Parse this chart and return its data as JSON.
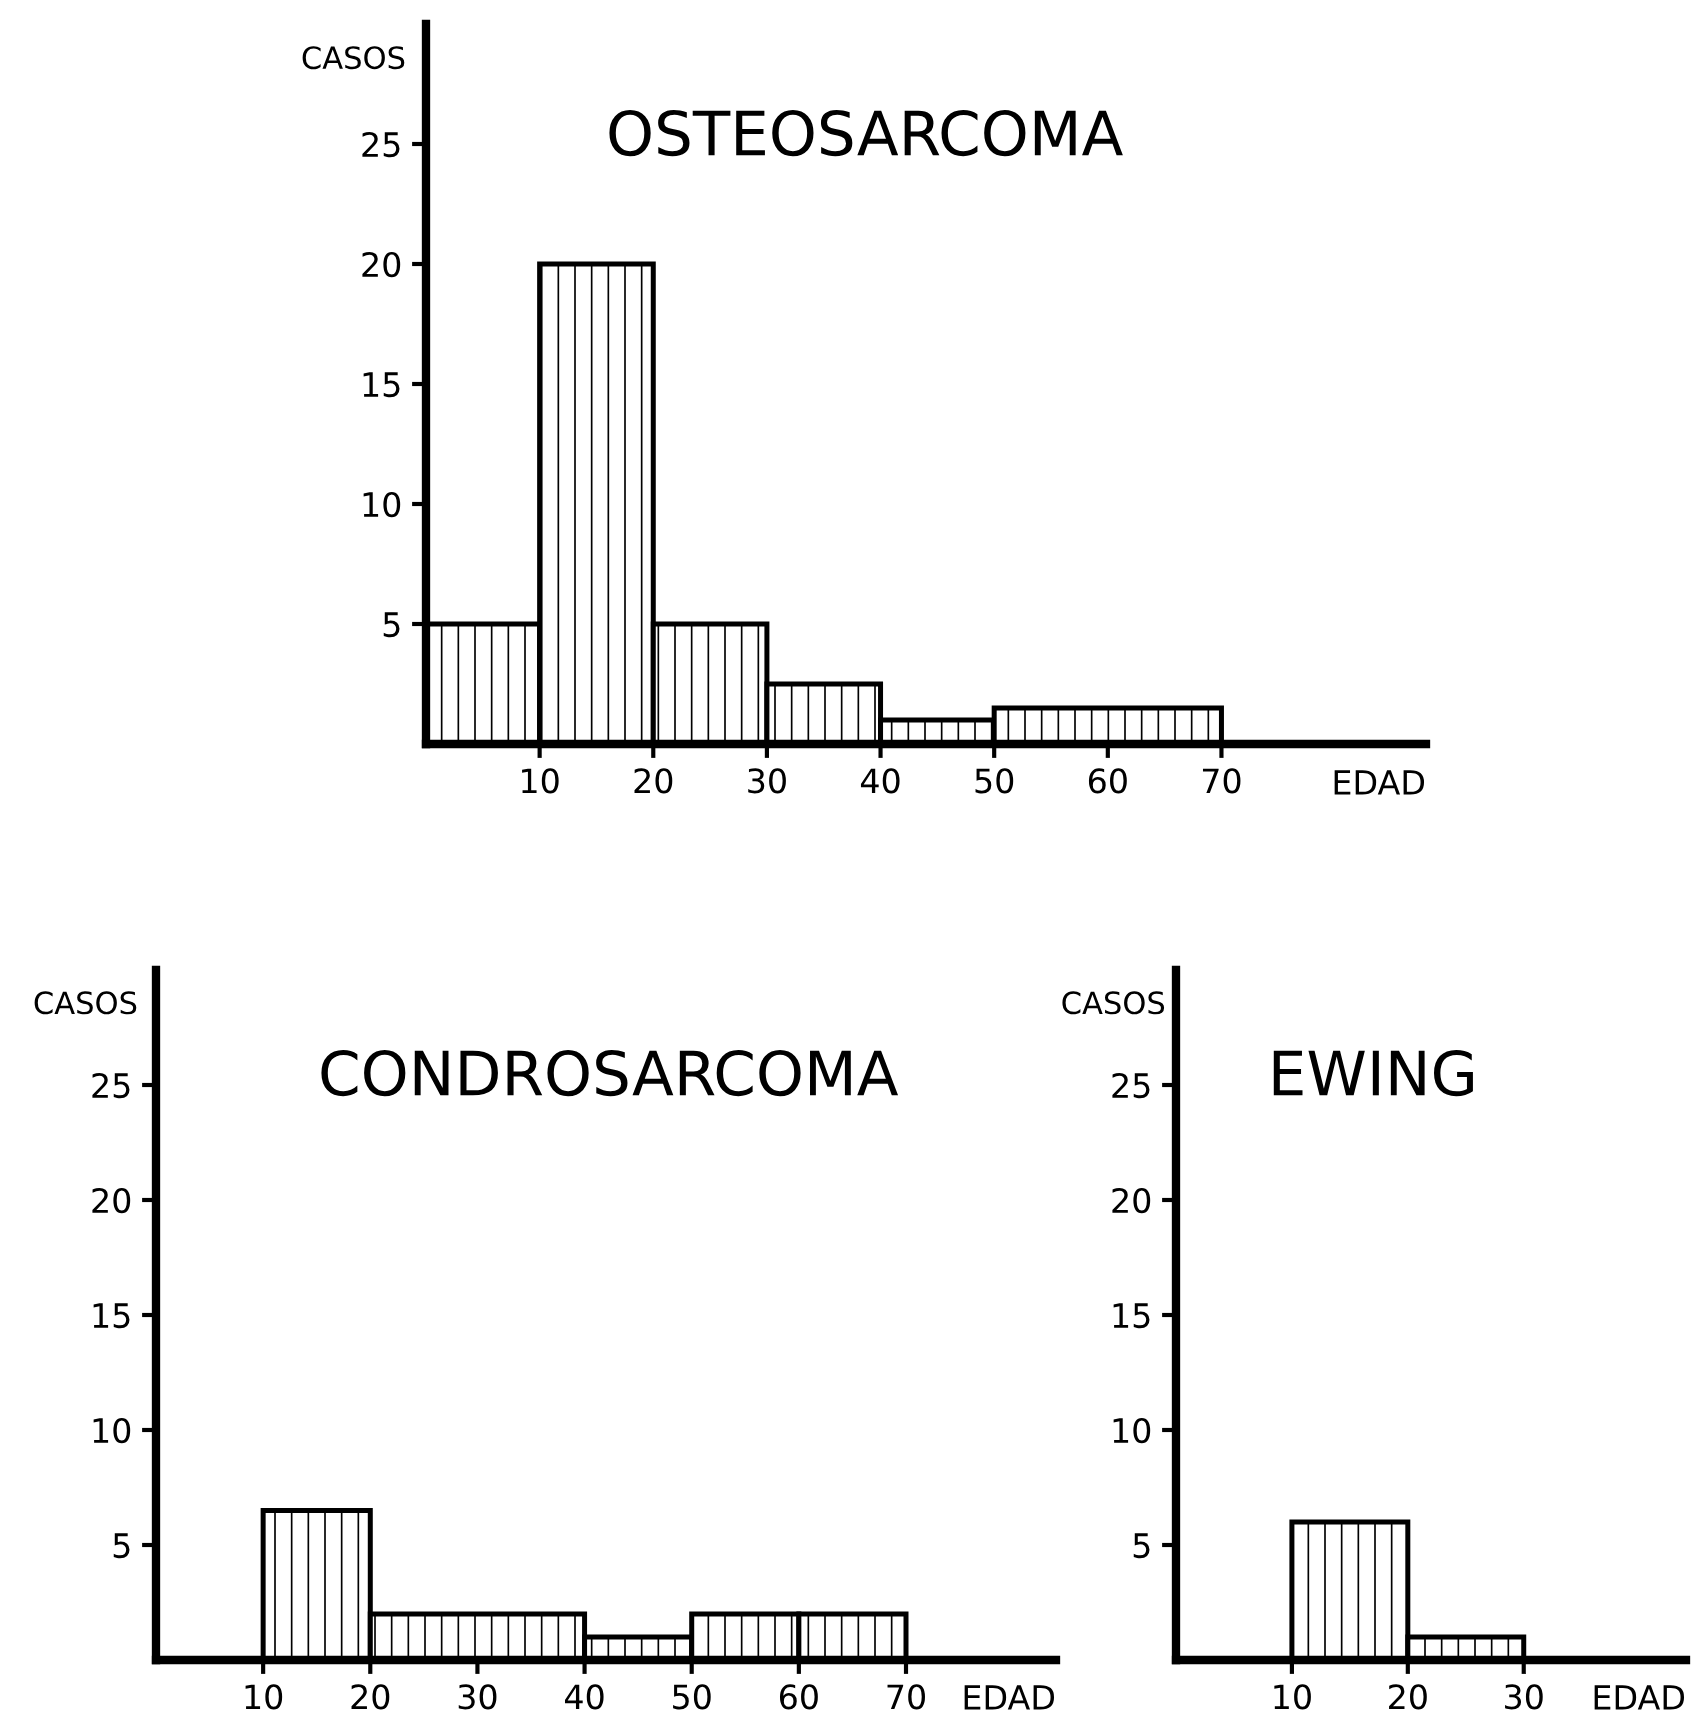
{
  "chart_data": [
    {
      "type": "histogram",
      "title": "OSTEOSARCOMA",
      "xlabel": "EDAD",
      "ylabel": "CASOS",
      "bins": [
        0,
        10,
        20,
        30,
        40,
        50,
        70
      ],
      "values": [
        5,
        20,
        5,
        2.5,
        1,
        1.5
      ],
      "color": "#000000",
      "xlim": [
        0,
        88
      ],
      "xticks": [
        10,
        20,
        30,
        40,
        50,
        60,
        70
      ],
      "ylim": [
        0,
        30
      ],
      "yticks": [
        5,
        10,
        15,
        20,
        25
      ],
      "grid": false,
      "legend": false
    },
    {
      "type": "histogram",
      "title": "CONDROSARCOMA",
      "xlabel": "EDAD",
      "ylabel": "CASOS",
      "bins": [
        10,
        20,
        40,
        50,
        60,
        70
      ],
      "values": [
        6.5,
        2,
        1,
        2,
        2
      ],
      "color": "#000000",
      "xlim": [
        0,
        84
      ],
      "xticks": [
        10,
        20,
        30,
        40,
        50,
        60,
        70
      ],
      "ylim": [
        0,
        30
      ],
      "yticks": [
        5,
        10,
        15,
        20,
        25
      ],
      "grid": false,
      "legend": false
    },
    {
      "type": "histogram",
      "title": "EWING",
      "xlabel": "EDAD",
      "ylabel": "CASOS",
      "bins": [
        10,
        20,
        30
      ],
      "values": [
        6,
        1
      ],
      "color": "#000000",
      "xlim": [
        0,
        44
      ],
      "xticks": [
        10,
        20,
        30
      ],
      "ylim": [
        0,
        30
      ],
      "yticks": [
        5,
        10,
        15,
        20,
        25
      ],
      "grid": false,
      "legend": false
    }
  ]
}
